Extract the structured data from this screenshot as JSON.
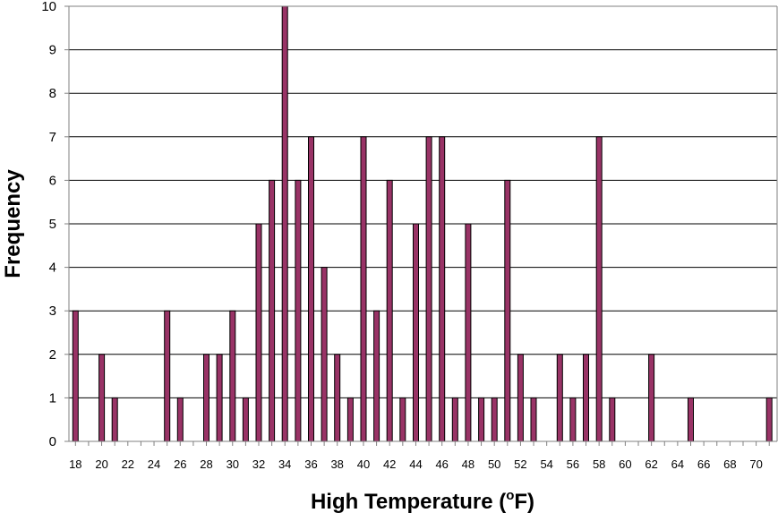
{
  "chart_data": {
    "type": "bar",
    "title": "",
    "xlabel_main": "High Temperature (",
    "xlabel_sup": "o",
    "xlabel_end": "F)",
    "ylabel": "Frequency",
    "ylim": [
      0,
      10
    ],
    "yticks": [
      "0",
      "1",
      "2",
      "3",
      "4",
      "5",
      "6",
      "7",
      "8",
      "9",
      "10"
    ],
    "xticks": [
      "18",
      "20",
      "22",
      "24",
      "26",
      "28",
      "30",
      "32",
      "34",
      "36",
      "38",
      "40",
      "42",
      "44",
      "46",
      "48",
      "50",
      "52",
      "54",
      "56",
      "58",
      "60",
      "62",
      "64",
      "66",
      "68",
      "70"
    ],
    "grid": "horizontal",
    "legend": "none",
    "bar_color": "#993366",
    "x": [
      18,
      20,
      21,
      25,
      26,
      28,
      29,
      30,
      31,
      32,
      33,
      34,
      35,
      36,
      37,
      38,
      39,
      40,
      41,
      42,
      43,
      44,
      45,
      46,
      47,
      48,
      49,
      50,
      51,
      52,
      53,
      55,
      56,
      57,
      58,
      59,
      62,
      65,
      71
    ],
    "values": [
      3,
      2,
      1,
      3,
      1,
      2,
      2,
      3,
      1,
      5,
      6,
      10,
      6,
      7,
      4,
      2,
      1,
      7,
      3,
      6,
      1,
      5,
      7,
      7,
      1,
      5,
      1,
      1,
      6,
      2,
      1,
      2,
      1,
      2,
      7,
      1,
      2,
      1,
      1
    ]
  }
}
